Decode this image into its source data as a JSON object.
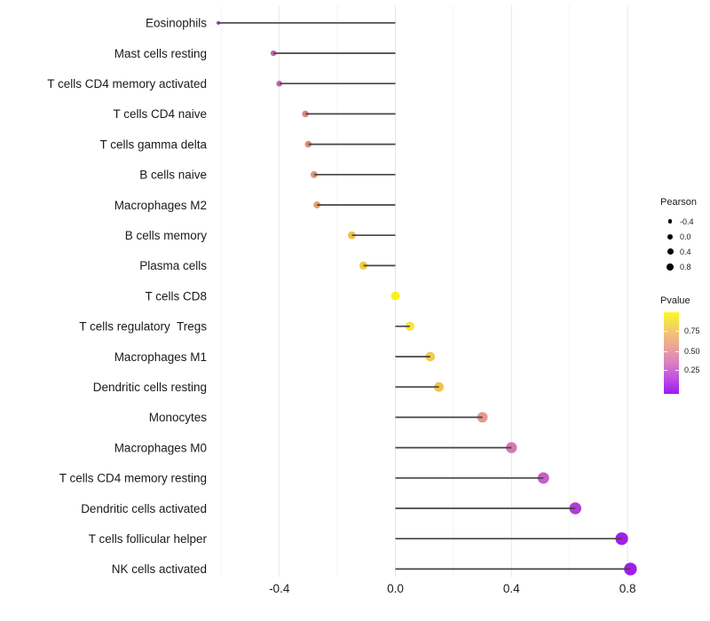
{
  "chart_data": {
    "type": "scatter",
    "style": "lollipop",
    "orientation": "horizontal",
    "title": "",
    "xlabel": "",
    "ylabel": "",
    "grid": "vertical-only",
    "baseline": 0,
    "xlim": [
      -0.68,
      0.86
    ],
    "x_ticks": [
      {
        "value": -0.4,
        "label": "-0.4"
      },
      {
        "value": 0.0,
        "label": "0.0"
      },
      {
        "value": 0.4,
        "label": "0.4"
      },
      {
        "value": 0.8,
        "label": "0.8"
      }
    ],
    "x_minor_ticks": [
      -0.6,
      -0.2,
      0.2,
      0.6
    ],
    "categories": [
      "Eosinophils",
      "Mast cells resting",
      "T cells CD4 memory activated",
      "T cells CD4 naive",
      "T cells gamma delta",
      "B cells naive",
      "Macrophages M2",
      "B cells memory",
      "Plasma cells",
      "T cells CD8",
      "T cells regulatory  Tregs",
      "Macrophages M1",
      "Dendritic cells resting",
      "Monocytes",
      "Macrophages M0",
      "T cells CD4 memory resting",
      "Dendritic cells activated",
      "T cells follicular helper",
      "NK cells activated"
    ],
    "series": [
      {
        "name": "Pearson",
        "values": [
          -0.61,
          -0.42,
          -0.4,
          -0.31,
          -0.3,
          -0.28,
          -0.27,
          -0.15,
          -0.11,
          0.0,
          0.05,
          0.12,
          0.15,
          0.3,
          0.4,
          0.51,
          0.62,
          0.78,
          0.81
        ]
      }
    ],
    "point_colors": [
      "#A93AC2",
      "#C766B2",
      "#C568B4",
      "#DA8B82",
      "#DC8E79",
      "#E2957A",
      "#E79C6F",
      "#EDC24F",
      "#F0CB44",
      "#F8F218",
      "#F6E53F",
      "#F1CB4E",
      "#EFC44F",
      "#E5998C",
      "#D478B1",
      "#C55FC7",
      "#B13CD6",
      "#A21FE6",
      "#A01EE8"
    ],
    "size_encoding": {
      "legend": "Pearson",
      "min_value": -0.62,
      "max_value": 0.81
    },
    "color_encoding": {
      "legend": "Pvalue"
    }
  },
  "legends": {
    "pearson": {
      "title": "Pearson",
      "items": [
        {
          "label": "-0.4",
          "diameter": 4.5
        },
        {
          "label": "0.0",
          "diameter": 6
        },
        {
          "label": "0.4",
          "diameter": 7
        },
        {
          "label": "0.8",
          "diameter": 8
        }
      ]
    },
    "pvalue": {
      "title": "Pvalue",
      "ticks": [
        {
          "label": "0.75",
          "pos": 0.225
        },
        {
          "label": "0.50",
          "pos": 0.474
        },
        {
          "label": "0.25",
          "pos": 0.702
        }
      ],
      "gradient": [
        {
          "color": "#FBF824",
          "stop": 0
        },
        {
          "color": "#F3C96E",
          "stop": 22
        },
        {
          "color": "#E9A09B",
          "stop": 45
        },
        {
          "color": "#DC7EC3",
          "stop": 62
        },
        {
          "color": "#C157DE",
          "stop": 79
        },
        {
          "color": "#A118F0",
          "stop": 100
        }
      ]
    }
  },
  "colors": {
    "stem": "#454545",
    "grid_major": "#E7E7E7",
    "grid_minor": "#F3F3F3",
    "axis_text": "#1a1a1a",
    "legend_dot": "#000000"
  }
}
